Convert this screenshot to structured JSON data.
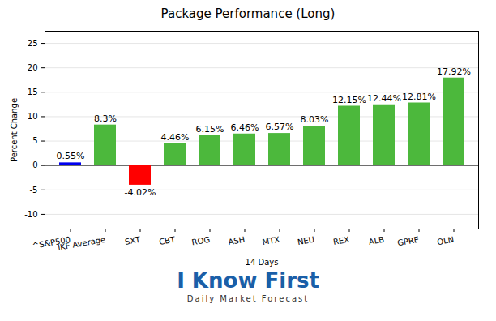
{
  "chart_data": {
    "type": "bar",
    "title": "Package Performance (Long)",
    "xlabel": "14 Days",
    "ylabel": "Percent Change",
    "categories": [
      "^S&P500",
      "IKF Average",
      "SXT",
      "CBT",
      "ROG",
      "ASH",
      "MTX",
      "NEU",
      "REX",
      "ALB",
      "GPRE",
      "OLN"
    ],
    "values": [
      0.55,
      8.3,
      -4.02,
      4.46,
      6.15,
      6.46,
      6.57,
      8.03,
      12.15,
      12.44,
      12.81,
      17.92
    ],
    "value_labels": [
      "0.55%",
      "8.3%",
      "-4.02%",
      "4.46%",
      "6.15%",
      "6.46%",
      "6.57%",
      "8.03%",
      "12.15%",
      "12.44%",
      "12.81%",
      "17.92%"
    ],
    "colors": [
      "#0000ee",
      "#4cb83c",
      "#ff0000",
      "#4cb83c",
      "#4cb83c",
      "#4cb83c",
      "#4cb83c",
      "#4cb83c",
      "#4cb83c",
      "#4cb83c",
      "#4cb83c",
      "#4cb83c"
    ],
    "ylim": [
      -13,
      27.5
    ],
    "yticks": [
      -10,
      -5,
      0,
      5,
      10,
      15,
      20,
      25
    ],
    "grid": true,
    "data_labels": true,
    "annotations": [
      "I Know First",
      "Daily Market Forecast"
    ]
  }
}
